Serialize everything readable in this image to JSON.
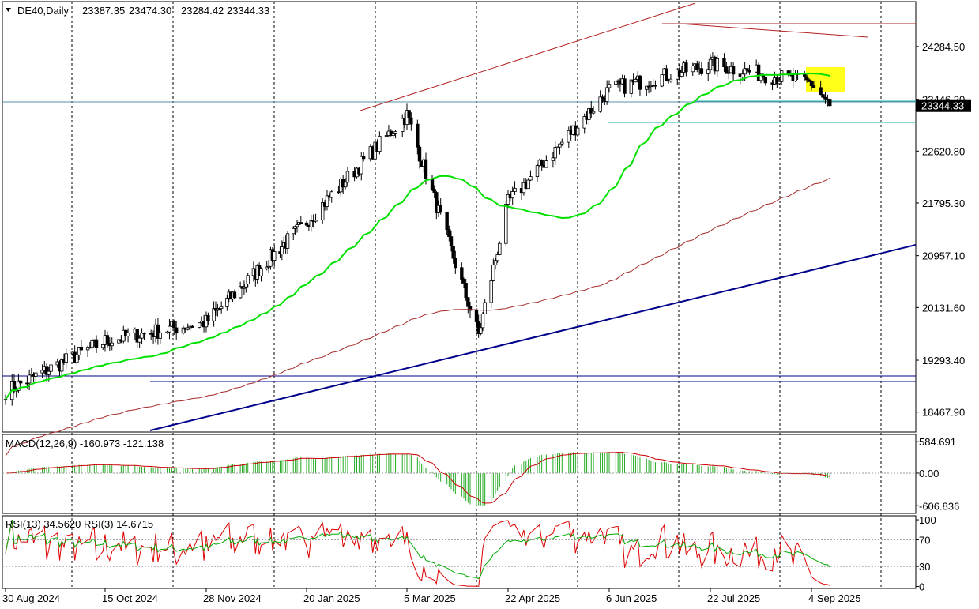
{
  "header": {
    "menu_icon": "triangle-down-icon",
    "symbol": "DE40,Daily",
    "open": "23387.35",
    "high": "23474.30",
    "low": "23284.42",
    "close": "23344.33"
  },
  "macd_panel": {
    "label": "MACD(12,26,9) -160.973 -121.138"
  },
  "rsi_panel": {
    "label": "RSI(13) 34.5620  RSI(3) 14.6715"
  },
  "colors": {
    "background": "#ffffff",
    "candle": "#000000",
    "ma_fast": "#00e000",
    "ma_slow": "#a52a2a",
    "macd_hist": "#22aa22",
    "macd_signal": "#cc0000",
    "rsi_fast": "#dd0000",
    "rsi_slow": "#00aa00",
    "support_lines": "#00008b",
    "cyan_lines": "#20b2aa",
    "resistance_lines": "#b22222",
    "highlight_box": "#ffff00",
    "current_price_badge": "#000000"
  },
  "chart_data": [
    {
      "type": "candlestick",
      "title": "DE40,Daily",
      "y_tick_labels": [
        "24284.50",
        "23446.20",
        "22620.80",
        "21795.30",
        "20957.10",
        "20131.60",
        "19293.40",
        "18467.90"
      ],
      "current_price_label": "23344.33",
      "ylim": [
        18150,
        25000
      ],
      "x_tick_labels": [
        "30 Aug 2024",
        "15 Oct 2024",
        "28 Nov 2024",
        "20 Jan 2025",
        "5 Mar 2025",
        "22 Apr 2025",
        "6 Jun 2025",
        "22 Jul 2025",
        "4 Sep 2025"
      ],
      "approx_close_path": {
        "x": [
          "30 Aug 2024",
          "15 Oct 2024",
          "28 Nov 2024",
          "20 Jan 2025",
          "5 Mar 2025",
          "8 Apr 2025",
          "22 Apr 2025",
          "6 Jun 2025",
          "22 Jul 2025",
          "4 Sep 2025",
          "12 Sep 2025"
        ],
        "y": [
          18800,
          19600,
          19900,
          21500,
          23200,
          19700,
          21800,
          23600,
          24000,
          23700,
          23344
        ]
      },
      "moving_averages": [
        "fast (green)",
        "slow (brown)"
      ],
      "grid": "vertical dashed"
    },
    {
      "type": "line",
      "title": "MACD(12,26,9) -160.973 -121.138",
      "y_tick_labels": [
        "584.691",
        "0.00",
        "-606.836"
      ],
      "ylim": [
        -750,
        720
      ]
    },
    {
      "type": "line",
      "title": "RSI(13) 34.5620  RSI(3) 14.6715",
      "y_tick_labels": [
        "100",
        "70",
        "30",
        "0"
      ],
      "ylim": [
        -3,
        106
      ]
    }
  ]
}
